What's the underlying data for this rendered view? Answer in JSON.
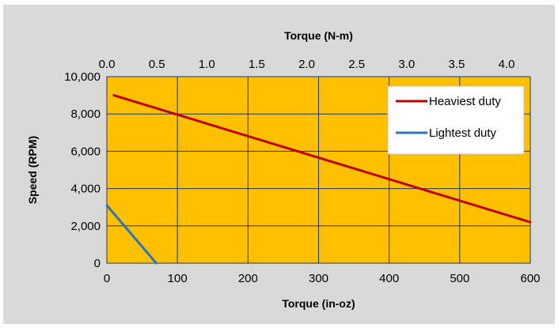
{
  "chart_data": {
    "type": "line",
    "title": "",
    "xlabel": "Torque (in-oz)",
    "x2label": "Torque (N-m)",
    "ylabel": "Speed (RPM)",
    "xlim": [
      0,
      600
    ],
    "x2lim": [
      0,
      4.237
    ],
    "ylim": [
      0,
      10000
    ],
    "x_ticks": [
      0,
      100,
      200,
      300,
      400,
      500,
      600
    ],
    "x_tick_labels": [
      "0",
      "100",
      "200",
      "300",
      "400",
      "500",
      "600"
    ],
    "x2_ticks": [
      0,
      0.5,
      1,
      1.5,
      2,
      2.5,
      3,
      3.5,
      4
    ],
    "x2_tick_labels": [
      "0.0",
      "0.5",
      "1.0",
      "1.5",
      "2.0",
      "2.5",
      "3.0",
      "3.5",
      "4.0"
    ],
    "y_ticks": [
      0,
      2000,
      4000,
      6000,
      8000,
      10000
    ],
    "y_tick_labels": [
      "0",
      "2,000",
      "4,000",
      "6,000",
      "8,000",
      "10,000"
    ],
    "grid": true,
    "legend_position": "top-right",
    "plot_background": "#ffc000",
    "outer_background": "#d9d9d9",
    "grid_color": "#1f3864",
    "series": [
      {
        "name": "Heaviest duty",
        "color": "#c00000",
        "x": [
          10,
          600
        ],
        "y": [
          9000,
          2200
        ]
      },
      {
        "name": "Lightest duty",
        "color": "#2e75b6",
        "x": [
          0,
          70
        ],
        "y": [
          3100,
          0
        ]
      }
    ]
  }
}
